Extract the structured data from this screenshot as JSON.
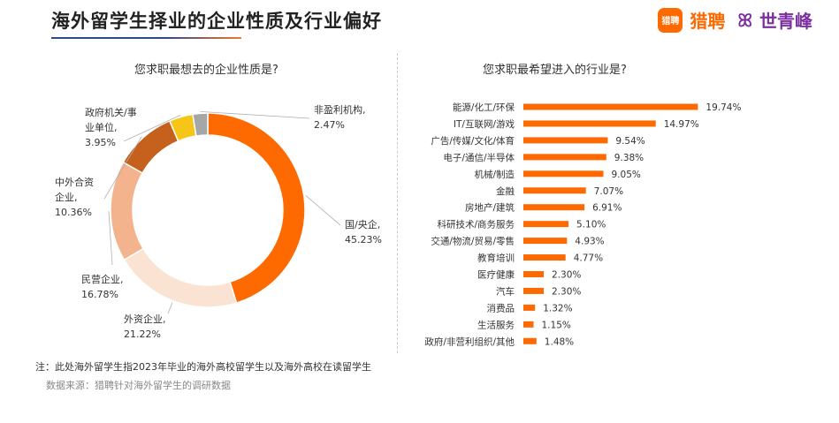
{
  "header": {
    "title": "海外留学生择业的企业性质及行业偏好",
    "brand_badge": "猎聘",
    "brand_name": "猎聘",
    "brand2_mark": "ꕤ",
    "brand2_name": "世青峰",
    "accent_color": "#ff6a00",
    "brand2_color": "#7b2fa0"
  },
  "chart_data": [
    {
      "type": "pie",
      "title": "您求职最想去的企业性质是?",
      "unit": "%",
      "slices": [
        {
          "label": "国/央企,",
          "value_text": "45.23%",
          "value": 45.23,
          "color": "#ff6a00"
        },
        {
          "label": "外资企业,",
          "value_text": "21.22%",
          "value": 21.22,
          "color": "#fbe3d3"
        },
        {
          "label": "民营企业,",
          "value_text": "16.78%",
          "value": 16.78,
          "color": "#f3b38c"
        },
        {
          "label_lines": [
            "中外合资",
            "企业,"
          ],
          "value_text": "10.36%",
          "value": 10.36,
          "color": "#c5611c"
        },
        {
          "label_lines": [
            "政府机关/事",
            "业单位,"
          ],
          "value_text": "3.95%",
          "value": 3.95,
          "color": "#f5c518"
        },
        {
          "label": "非盈利机构,",
          "value_text": "2.47%",
          "value": 2.47,
          "color": "#a6a6a6"
        }
      ]
    },
    {
      "type": "bar",
      "orientation": "horizontal",
      "title": "您求职最希望进入的行业是?",
      "unit": "%",
      "bar_color": "#ff6a00",
      "categories": [
        "能源/化工/环保",
        "IT/互联网/游戏",
        "广告/传媒/文化/体育",
        "电子/通信/半导体",
        "机械/制造",
        "金融",
        "房地产/建筑",
        "科研技术/商务服务",
        "交通/物流/贸易/零售",
        "教育培训",
        "医疗健康",
        "汽车",
        "消费品",
        "生活服务",
        "政府/非营利组织/其他"
      ],
      "values": [
        19.74,
        14.97,
        9.54,
        9.38,
        9.05,
        7.07,
        6.91,
        5.1,
        4.93,
        4.77,
        2.3,
        2.3,
        1.32,
        1.15,
        1.48
      ],
      "value_labels": [
        "19.74%",
        "14.97%",
        "9.54%",
        "9.38%",
        "9.05%",
        "7.07%",
        "6.91%",
        "5.10%",
        "4.93%",
        "4.77%",
        "2.30%",
        "2.30%",
        "1.32%",
        "1.15%",
        "1.48%"
      ],
      "xlim": [
        0,
        20
      ]
    }
  ],
  "footer": {
    "note": "注：此处海外留学生指2023年毕业的海外高校留学生以及海外高校在读留学生",
    "source": "数据来源：猎聘针对海外留学生的调研数据"
  }
}
